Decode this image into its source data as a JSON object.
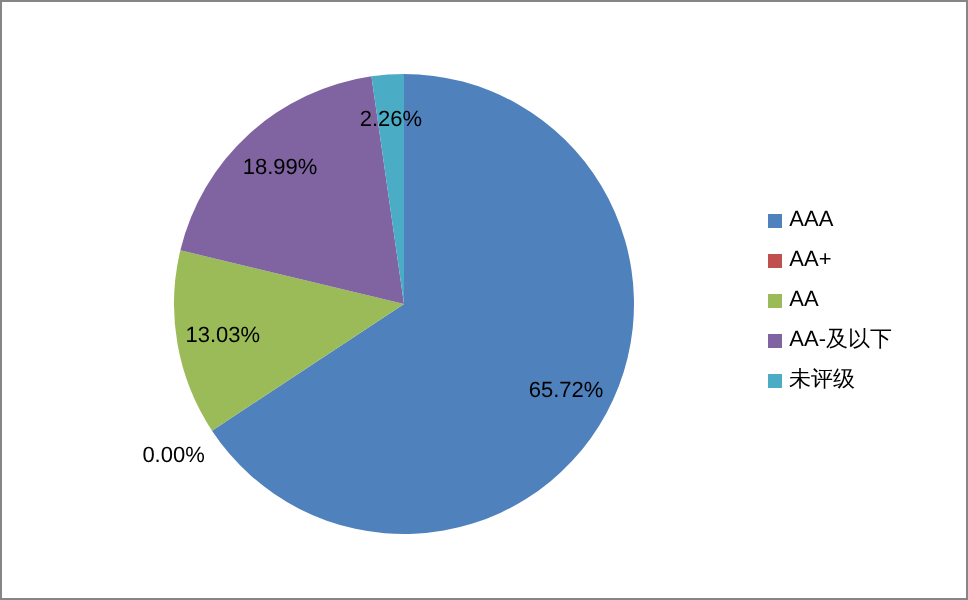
{
  "chart_data": {
    "type": "pie",
    "categories": [
      "AAA",
      "AA+",
      "AA",
      "AA-及以下",
      "未评级"
    ],
    "values": [
      65.72,
      0.0,
      13.03,
      18.99,
      2.26
    ],
    "colors": [
      "#4f81bd",
      "#c0504d",
      "#9bbb59",
      "#8064a2",
      "#4bacc6"
    ],
    "value_labels": [
      "65.72%",
      "0.00%",
      "13.03%",
      "18.99%",
      "2.26%"
    ],
    "legend": "right"
  }
}
